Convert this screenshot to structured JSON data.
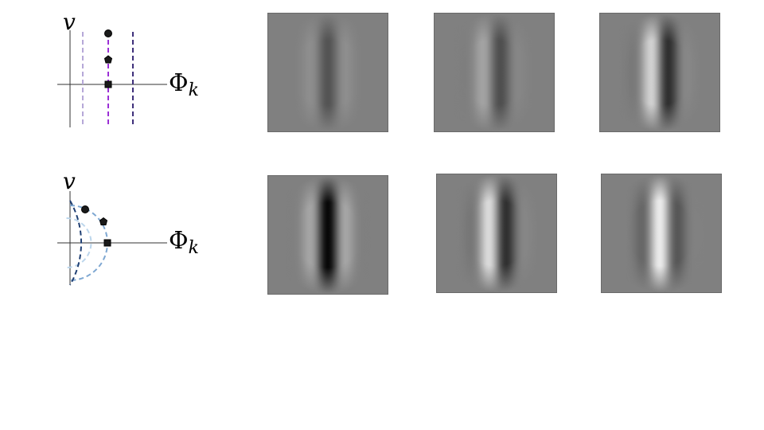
{
  "axis_labels": {
    "vertical": "v",
    "horizontal": "Φ",
    "horizontal_subscript": "k"
  },
  "colors": {
    "row1_lines": [
      "#b6a8d8",
      "#9b2fd6",
      "#3e2f7a"
    ],
    "row2_arcs": [
      "#bcd6ec",
      "#7fa8d2",
      "#1f3f73"
    ],
    "marker_fill": "#1a1a1a",
    "patch_background": "#808080"
  },
  "rows": [
    {
      "diagram": "vertical-lines",
      "markers": [
        "circle",
        "pentagon",
        "square"
      ],
      "patches": [
        {
          "contrast": 0.35,
          "phase": 0.0
        },
        {
          "contrast": 0.45,
          "phase": 0.35
        },
        {
          "contrast": 0.85,
          "phase": 0.5
        }
      ]
    },
    {
      "diagram": "concentric-arcs",
      "markers": [
        "circle",
        "pentagon",
        "square"
      ],
      "patches": [
        {
          "contrast": 0.95,
          "phase": 0.0
        },
        {
          "contrast": 0.9,
          "phase": 0.55
        },
        {
          "contrast": 0.85,
          "phase": 0.9
        }
      ]
    }
  ]
}
